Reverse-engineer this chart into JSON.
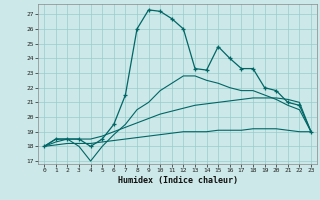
{
  "background_color": "#cce8e8",
  "grid_color": "#99cccc",
  "line_color": "#006666",
  "marker_color": "#006666",
  "xlabel": "Humidex (Indice chaleur)",
  "xlim": [
    -0.5,
    23.5
  ],
  "ylim": [
    16.8,
    27.7
  ],
  "yticks": [
    17,
    18,
    19,
    20,
    21,
    22,
    23,
    24,
    25,
    26,
    27
  ],
  "xticks": [
    0,
    1,
    2,
    3,
    4,
    5,
    6,
    7,
    8,
    9,
    10,
    11,
    12,
    13,
    14,
    15,
    16,
    17,
    18,
    19,
    20,
    21,
    22,
    23
  ],
  "series": [
    {
      "x": [
        0,
        1,
        2,
        3,
        4,
        5,
        6,
        7,
        8,
        9,
        10,
        11,
        12,
        13,
        14,
        15,
        16,
        17,
        18,
        19,
        20,
        21,
        22,
        23
      ],
      "y": [
        18.0,
        18.5,
        18.5,
        18.5,
        18.0,
        18.5,
        19.5,
        21.5,
        26.0,
        27.3,
        27.2,
        26.7,
        26.0,
        23.3,
        23.2,
        24.8,
        24.0,
        23.3,
        23.3,
        22.0,
        21.8,
        21.0,
        20.8,
        19.0
      ],
      "marker": true
    },
    {
      "x": [
        0,
        1,
        2,
        3,
        4,
        5,
        6,
        7,
        8,
        9,
        10,
        11,
        12,
        13,
        14,
        15,
        16,
        17,
        18,
        19,
        20,
        21,
        22,
        23
      ],
      "y": [
        18.0,
        18.5,
        18.5,
        18.0,
        17.0,
        18.0,
        18.8,
        19.5,
        20.5,
        21.0,
        21.8,
        22.3,
        22.8,
        22.8,
        22.5,
        22.3,
        22.0,
        21.8,
        21.8,
        21.5,
        21.2,
        20.8,
        20.5,
        19.0
      ],
      "marker": false
    },
    {
      "x": [
        0,
        1,
        2,
        3,
        4,
        5,
        6,
        7,
        8,
        9,
        10,
        11,
        12,
        13,
        14,
        15,
        16,
        17,
        18,
        19,
        20,
        21,
        22,
        23
      ],
      "y": [
        18.0,
        18.3,
        18.5,
        18.5,
        18.5,
        18.7,
        19.0,
        19.3,
        19.6,
        19.9,
        20.2,
        20.4,
        20.6,
        20.8,
        20.9,
        21.0,
        21.1,
        21.2,
        21.3,
        21.3,
        21.3,
        21.2,
        21.0,
        19.0
      ],
      "marker": false
    },
    {
      "x": [
        0,
        1,
        2,
        3,
        4,
        5,
        6,
        7,
        8,
        9,
        10,
        11,
        12,
        13,
        14,
        15,
        16,
        17,
        18,
        19,
        20,
        21,
        22,
        23
      ],
      "y": [
        18.0,
        18.1,
        18.2,
        18.2,
        18.2,
        18.3,
        18.4,
        18.5,
        18.6,
        18.7,
        18.8,
        18.9,
        19.0,
        19.0,
        19.0,
        19.1,
        19.1,
        19.1,
        19.2,
        19.2,
        19.2,
        19.1,
        19.0,
        19.0
      ],
      "marker": false
    }
  ]
}
